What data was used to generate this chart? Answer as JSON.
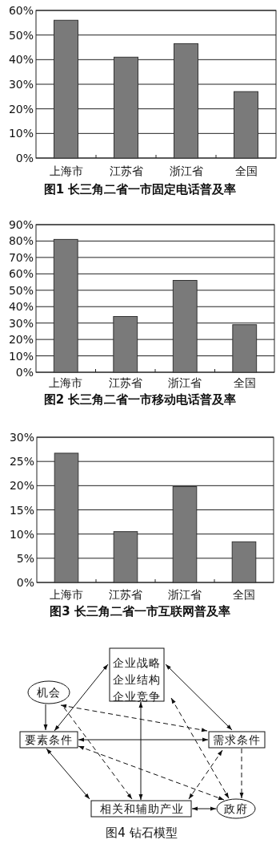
{
  "chart_data": [
    {
      "type": "bar",
      "title": "图1 长三角二省一市固定电话普及率",
      "categories": [
        "上海市",
        "江苏省",
        "浙江省",
        "全国"
      ],
      "values": [
        56,
        41,
        46.5,
        27
      ],
      "color": "#7a7a7a",
      "ylim": [
        0,
        60
      ],
      "yticks": [
        {
          "value": 0,
          "label": "0%"
        },
        {
          "value": 10,
          "label": "10%"
        },
        {
          "value": 20,
          "label": "20%"
        },
        {
          "value": 30,
          "label": "30%"
        },
        {
          "value": 40,
          "label": "40%"
        },
        {
          "value": 50,
          "label": "50%"
        },
        {
          "value": 60,
          "label": "60%"
        }
      ],
      "grid": "y"
    },
    {
      "type": "bar",
      "title": "图2 长三角二省一市移动电话普及率",
      "categories": [
        "上海市",
        "江苏省",
        "浙江省",
        "全国"
      ],
      "values": [
        81,
        34,
        56,
        29
      ],
      "color": "#7a7a7a",
      "ylim": [
        0,
        90
      ],
      "yticks": [
        {
          "value": 0,
          "label": "0%"
        },
        {
          "value": 10,
          "label": "10%"
        },
        {
          "value": 20,
          "label": "20%"
        },
        {
          "value": 30,
          "label": "30%"
        },
        {
          "value": 40,
          "label": "40%"
        },
        {
          "value": 50,
          "label": "50%"
        },
        {
          "value": 60,
          "label": "60%"
        },
        {
          "value": 70,
          "label": "70%"
        },
        {
          "value": 80,
          "label": "80%"
        },
        {
          "value": 90,
          "label": "90%"
        }
      ],
      "grid": "y"
    },
    {
      "type": "bar",
      "title": "图3 长三角二省一市互联网普及率",
      "categories": [
        "上海市",
        "江苏省",
        "浙江省",
        "全国"
      ],
      "values": [
        26.7,
        10.5,
        19.8,
        8.4
      ],
      "color": "#7a7a7a",
      "ylim": [
        0,
        30
      ],
      "yticks": [
        {
          "value": 0,
          "label": "0%"
        },
        {
          "value": 5,
          "label": "5%"
        },
        {
          "value": 10,
          "label": "10%"
        },
        {
          "value": 15,
          "label": "15%"
        },
        {
          "value": 20,
          "label": "20%"
        },
        {
          "value": 25,
          "label": "25%"
        },
        {
          "value": 30,
          "label": "30%"
        }
      ],
      "grid": "y"
    },
    {
      "type": "other",
      "title": "图4 钻石模型",
      "annotations": [
        "企业战略",
        "企业结构",
        "企业竞争",
        "机会",
        "要素条件",
        "需求条件",
        "相关和辅助产业",
        "政府"
      ]
    }
  ]
}
